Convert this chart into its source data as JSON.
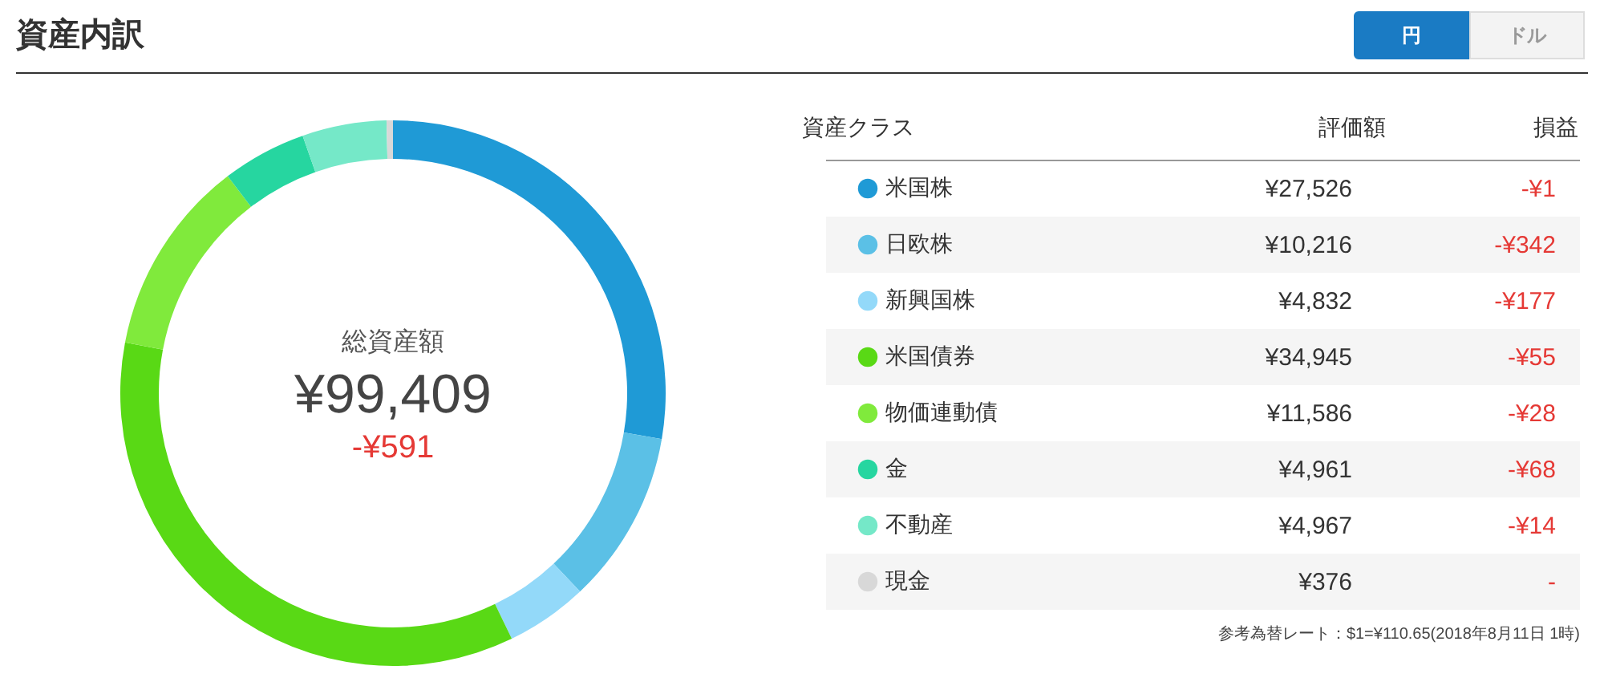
{
  "chart_data": {
    "type": "donut",
    "title": "資産内訳",
    "categories": [
      "米国株",
      "日欧株",
      "新興国株",
      "米国債券",
      "物価連動債",
      "金",
      "不動産",
      "現金"
    ],
    "values": [
      27526,
      10216,
      4832,
      34945,
      11586,
      4961,
      4967,
      376
    ],
    "value_labels": [
      "¥27,526",
      "¥10,216",
      "¥4,832",
      "¥34,945",
      "¥11,586",
      "¥4,961",
      "¥4,967",
      "¥376"
    ],
    "colors": [
      "#1f9ad6",
      "#5bc0e6",
      "#93d9f9",
      "#59d915",
      "#80ea3c",
      "#26d6a0",
      "#75e8c8",
      "#d8d8d8"
    ],
    "legend": "right",
    "annotations": [
      "総資産額",
      "¥99,409",
      "-¥591",
      "資産クラス",
      "評価額",
      "損益",
      "-¥1",
      "-¥342",
      "-¥177",
      "-¥55",
      "-¥28",
      "-¥68",
      "-¥14",
      "-",
      "参考為替レート：$1=¥110.65(2018年8月11日 1時)",
      "円",
      "ドル"
    ]
  }
}
